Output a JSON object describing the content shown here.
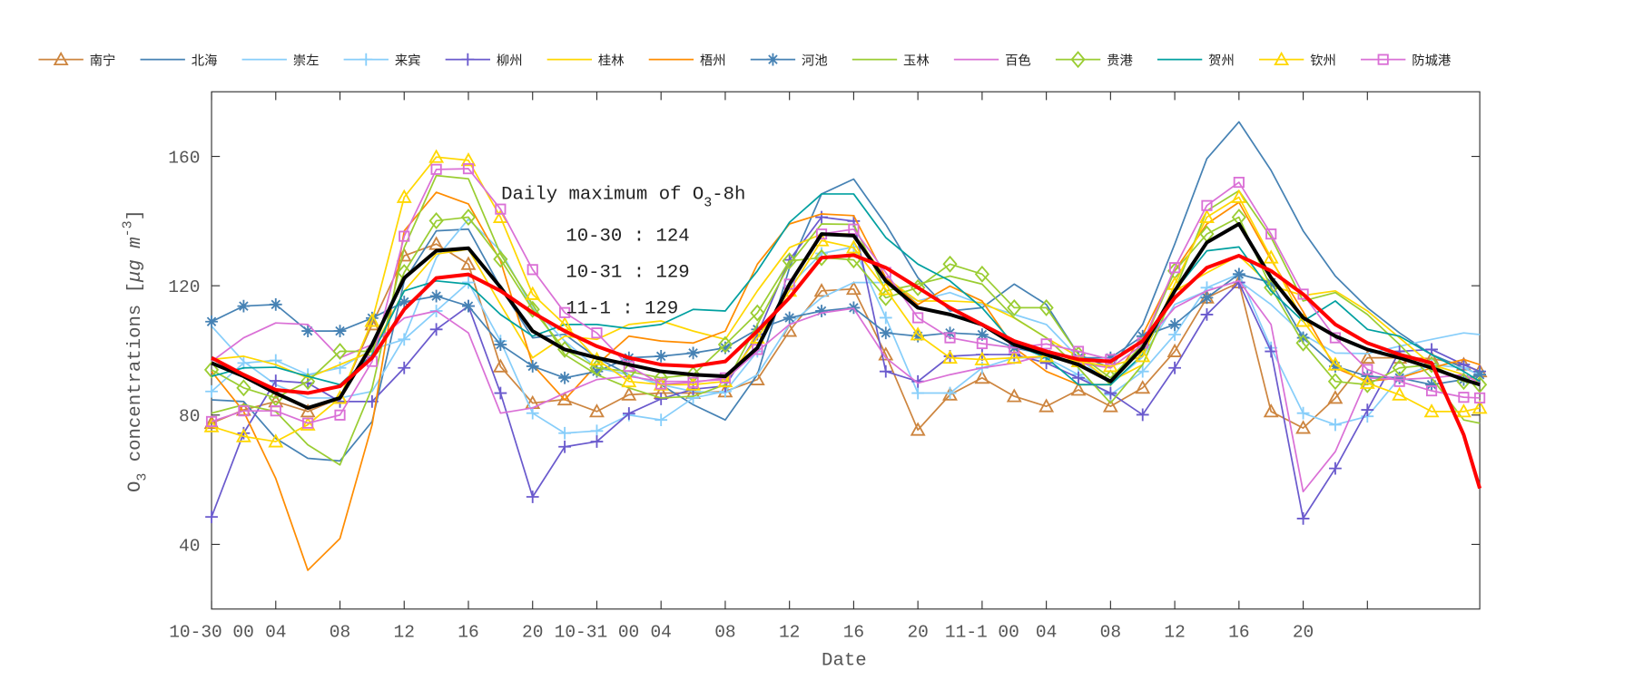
{
  "chart_data": {
    "type": "line",
    "xlabel": "Date",
    "ylabel": {
      "prefix": "O",
      "sub": "3",
      "mid": " concentrations [",
      "unit": "μg m",
      "sup": "-3",
      "suffix": "]"
    },
    "xlim": [
      "10-30 00",
      "11-2 07"
    ],
    "ylim": [
      20,
      180
    ],
    "yticks": [
      40,
      80,
      120,
      160
    ],
    "xticks": [
      {
        "at": "10-30 00",
        "label": "10-30 00"
      },
      {
        "at": "10-30 04",
        "label": "04"
      },
      {
        "at": "10-30 08",
        "label": "08"
      },
      {
        "at": "10-30 12",
        "label": "12"
      },
      {
        "at": "10-30 16",
        "label": "16"
      },
      {
        "at": "10-30 20",
        "label": "20"
      },
      {
        "at": "10-31 00",
        "label": "10-31 00"
      },
      {
        "at": "10-31 04",
        "label": "04"
      },
      {
        "at": "10-31 08",
        "label": "08"
      },
      {
        "at": "10-31 12",
        "label": "12"
      },
      {
        "at": "10-31 16",
        "label": "16"
      },
      {
        "at": "10-31 20",
        "label": "20"
      },
      {
        "at": "11-1 00",
        "label": "11-1 00"
      },
      {
        "at": "11-1 04",
        "label": "04"
      },
      {
        "at": "11-1 08",
        "label": "08"
      },
      {
        "at": "11-1 12",
        "label": "12"
      },
      {
        "at": "11-1 16",
        "label": "16"
      },
      {
        "at": "11-1 20",
        "label": "20"
      },
      {
        "at": "11-2 00",
        "label": ""
      }
    ],
    "grid": false,
    "legend_placement": "top (outside, single row)",
    "annotation": {
      "title_prefix": "Daily maximum of O",
      "title_sub": "3",
      "title_suffix": "-8h",
      "lines": [
        "10-30 : 124",
        "10-31 : 129",
        "11-1 : 129"
      ]
    },
    "x": [
      "10-30 00",
      "10-30 02",
      "10-30 04",
      "10-30 06",
      "10-30 08",
      "10-30 10",
      "10-30 12",
      "10-30 14",
      "10-30 16",
      "10-30 18",
      "10-30 20",
      "10-30 22",
      "10-31 00",
      "10-31 02",
      "10-31 04",
      "10-31 06",
      "10-31 08",
      "10-31 10",
      "10-31 12",
      "10-31 14",
      "10-31 16",
      "10-31 18",
      "10-31 20",
      "10-31 22",
      "11-1 00",
      "11-1 02",
      "11-1 04",
      "11-1 06",
      "11-1 08",
      "11-1 10",
      "11-1 12",
      "11-1 14",
      "11-1 16",
      "11-1 18",
      "11-1 20",
      "11-1 22",
      "11-2 00",
      "11-2 02",
      "11-2 04",
      "11-2 06",
      "11-2 07"
    ],
    "series": [
      {
        "name": "南宁",
        "color": "#CD853F",
        "marker": "triangle",
        "values": [
          77.5,
          81.6,
          84.2,
          81.1,
          85.3,
          108,
          129.3,
          132.9,
          126.7,
          95,
          83.7,
          84.8,
          81.1,
          86.3,
          86.8,
          86.8,
          87.3,
          91,
          106,
          118.4,
          119,
          98.7,
          75.4,
          86.3,
          91.5,
          85.8,
          82.7,
          87.8,
          82.7,
          88.4,
          99.7,
          116.3,
          121,
          81.1,
          76,
          85.3,
          97.7,
          97.7,
          97.5,
          95.6,
          93.5
        ]
      },
      {
        "name": "北海",
        "color": "#4682B4",
        "marker": "none",
        "values": [
          84.7,
          84.2,
          72.8,
          66.6,
          65.8,
          78,
          121.5,
          137,
          137.5,
          119.5,
          103.9,
          105,
          97.7,
          92.5,
          89.4,
          83.2,
          78.5,
          92.5,
          125.6,
          148.4,
          153,
          139,
          122.5,
          112.2,
          113.2,
          120.5,
          114.2,
          98.7,
          94.6,
          108,
          132.9,
          159.3,
          170.7,
          155.7,
          137,
          123,
          113.2,
          105.4,
          98.7,
          94.6,
          92.5
        ]
      },
      {
        "name": "崇左",
        "color": "#87CEFA",
        "marker": "none",
        "values": [
          107.5,
          96.6,
          89.4,
          85.3,
          85.3,
          87.3,
          103.9,
          128.7,
          140.6,
          130.8,
          113.2,
          102.9,
          94.6,
          92.5,
          89.4,
          87.3,
          86.8,
          92.5,
          108,
          116.3,
          121,
          121,
          115.3,
          117.9,
          114.2,
          111.1,
          108,
          97.7,
          89.4,
          98,
          114.2,
          118.4,
          121.5,
          114.2,
          104.9,
          99.2,
          99,
          101.3,
          103.4,
          105.4,
          104.9
        ]
      },
      {
        "name": "来宾",
        "color": "#87CEFA",
        "marker": "plus",
        "values": [
          87.3,
          96.1,
          96.9,
          92.5,
          94.6,
          100.3,
          103.4,
          112.2,
          121,
          102.9,
          80.6,
          74.4,
          75.1,
          80,
          78.5,
          85.3,
          87.3,
          99.7,
          120,
          130,
          132,
          110.1,
          86.8,
          86.8,
          94.6,
          97.7,
          97.7,
          92.5,
          86.3,
          93.5,
          104.9,
          119.4,
          123.6,
          100.8,
          80.6,
          77,
          79.6,
          91.5,
          95.6,
          94.6,
          92.5
        ]
      },
      {
        "name": "柳州",
        "color": "#6A5ACD",
        "marker": "plus",
        "values": [
          48.5,
          74.4,
          90.6,
          89.9,
          84.2,
          84.2,
          94.6,
          106.5,
          113.7,
          86.8,
          54.7,
          70.2,
          71.8,
          80.5,
          85,
          88,
          89,
          105,
          128,
          141.2,
          140,
          93.5,
          90.4,
          98.2,
          98.7,
          98.7,
          96.1,
          91.5,
          86.8,
          80.1,
          94.6,
          111.1,
          121,
          99.7,
          48,
          63.5,
          81.6,
          99.7,
          100.3,
          95.6,
          93.5
        ]
      },
      {
        "name": "桂林",
        "color": "#FFD700",
        "marker": "none",
        "values": [
          97.2,
          98.2,
          95.6,
          91.5,
          95.6,
          99.7,
          118.4,
          129.8,
          131.3,
          114.2,
          97.7,
          104.4,
          103.4,
          108,
          109.1,
          106,
          103.4,
          118.4,
          131.8,
          136,
          136,
          122.5,
          115.3,
          115.3,
          114.8,
          110,
          103.9,
          98,
          90.4,
          95.6,
          118.4,
          124,
          129.3,
          120,
          117,
          118.4,
          112.2,
          103.9,
          95.6,
          92.5,
          90.4
        ]
      },
      {
        "name": "梧州",
        "color": "#FF8C00",
        "marker": "none",
        "values": [
          93.5,
          81.1,
          60.4,
          32,
          41.8,
          77,
          137,
          148.9,
          145.3,
          127.7,
          95.6,
          84.7,
          95.6,
          104.4,
          102.9,
          102.3,
          106,
          126.7,
          139.1,
          142.2,
          141.7,
          122.5,
          114.2,
          119.9,
          115.3,
          100.8,
          93.5,
          89.4,
          89.4,
          104.9,
          124.6,
          139.1,
          145.8,
          128,
          112,
          94.6,
          90.4,
          91.5,
          94.6,
          97.2,
          95.6
        ]
      },
      {
        "name": "河池",
        "color": "#4682B4",
        "marker": "star",
        "values": [
          108.9,
          113.7,
          114.2,
          106,
          106,
          110,
          115,
          116.8,
          113.7,
          101.8,
          95.1,
          91.5,
          93.5,
          97.7,
          98.2,
          99.2,
          100.8,
          106.5,
          110.1,
          112.2,
          113.2,
          105.4,
          104.4,
          105.4,
          104.9,
          100.8,
          98.7,
          97.7,
          97.7,
          104.4,
          108,
          116.3,
          123.6,
          121,
          103.9,
          95.1,
          92,
          91.5,
          89.4,
          91,
          92.5
        ]
      },
      {
        "name": "玉林",
        "color": "#9ACD32",
        "marker": "none",
        "values": [
          80.6,
          83.2,
          81.1,
          70.8,
          64.6,
          88.4,
          131.8,
          154.1,
          153.1,
          129.8,
          114.2,
          98.7,
          92.5,
          88.4,
          85.3,
          85.8,
          89.4,
          108,
          126.7,
          139.1,
          139,
          118.4,
          120.5,
          123,
          120.5,
          110.1,
          103.9,
          94.6,
          83.7,
          95.6,
          118.4,
          143.2,
          149.4,
          135,
          115.3,
          117.9,
          111.1,
          101.8,
          91.5,
          78.5,
          77.5
        ]
      },
      {
        "name": "百色",
        "color": "#DA70D6",
        "marker": "none",
        "values": [
          96.6,
          103.9,
          108.5,
          108,
          97.7,
          101.8,
          110,
          112.2,
          105.4,
          80.6,
          82.2,
          86.8,
          91,
          92,
          90.4,
          90.4,
          91,
          99.7,
          108,
          111.6,
          113,
          97.7,
          89.9,
          92.5,
          94.6,
          96.1,
          98.7,
          96.1,
          94.6,
          101.8,
          113.2,
          118.4,
          121.5,
          108,
          56.3,
          68.7,
          91.5,
          91,
          91.5,
          92.5,
          89.9
        ]
      },
      {
        "name": "贵港",
        "color": "#9ACD32",
        "marker": "diamond",
        "values": [
          94,
          88.4,
          85.3,
          90.4,
          99.7,
          99.7,
          124.1,
          140.1,
          141.2,
          128.2,
          112.7,
          100.3,
          94.6,
          93.5,
          91.5,
          92.5,
          101.8,
          111.6,
          127.7,
          128.7,
          128,
          116.3,
          119.4,
          126.7,
          123.6,
          113.2,
          113.2,
          98.7,
          91.5,
          101.8,
          124.6,
          136,
          141.2,
          119.4,
          102.3,
          90.4,
          89.4,
          94.6,
          95.6,
          90.4,
          89.4
        ]
      },
      {
        "name": "贺州",
        "color": "#00A0A0",
        "marker": "none",
        "values": [
          92,
          94.6,
          94.8,
          92,
          89.4,
          98.7,
          118.4,
          121.5,
          120.5,
          111.1,
          104.4,
          108,
          108,
          106.8,
          108,
          112.7,
          112.2,
          124.6,
          139.6,
          148.4,
          148.4,
          134.9,
          126.7,
          121.5,
          113.2,
          101.8,
          97.7,
          89.4,
          89.4,
          98.7,
          118.4,
          130.8,
          132,
          118.4,
          109,
          115.3,
          106.5,
          104.4,
          98.7,
          93.5,
          90.4
        ]
      },
      {
        "name": "钦州",
        "color": "#FFD700",
        "marker": "triangle",
        "values": [
          76.5,
          73.4,
          71.8,
          77,
          85.3,
          109.1,
          147.4,
          159.8,
          158.8,
          141.2,
          117.4,
          108,
          97.2,
          90.4,
          89.4,
          89.4,
          90.4,
          103.9,
          118.4,
          134,
          131.8,
          118.9,
          104.9,
          97.7,
          97.2,
          97.7,
          98.2,
          96.6,
          95.1,
          98.2,
          120.5,
          141.2,
          147.4,
          128.7,
          109.1,
          95.6,
          89.9,
          86.3,
          81.1,
          81.1,
          82.2
        ]
      },
      {
        "name": "防城港",
        "color": "#DA70D6",
        "marker": "square",
        "values": [
          78,
          81.3,
          81.3,
          77.5,
          80,
          96.6,
          135.3,
          156,
          156.2,
          143.7,
          125,
          111.7,
          105.4,
          95.1,
          89.6,
          90.1,
          91.5,
          100.3,
          120.5,
          136,
          137.5,
          124.1,
          110.1,
          103.9,
          102.1,
          100.8,
          102,
          99.7,
          97.2,
          102.3,
          125.6,
          144.8,
          152,
          136,
          117.4,
          103.9,
          94.1,
          90.4,
          87.5,
          85.5,
          85.3
        ]
      },
      {
        "color": "#000000",
        "marker": "none",
        "thick": true,
        "values": [
          96.1,
          92,
          86.8,
          82.2,
          85.3,
          101.8,
          122.4,
          130.8,
          131.6,
          119.5,
          106,
          100.3,
          97.7,
          95.6,
          93.5,
          92.5,
          92,
          100.8,
          120.5,
          136,
          135.5,
          121.5,
          113.2,
          111.1,
          108,
          101.8,
          98.7,
          95.6,
          90.4,
          100.8,
          118.4,
          133.4,
          139.1,
          122.5,
          110.1,
          104.4,
          100.3,
          97.7,
          94.6,
          91,
          89.4
        ]
      },
      {
        "color": "#FF0000",
        "marker": "none",
        "thick": true,
        "values": [
          97.7,
          92.5,
          87.8,
          86.8,
          88.9,
          97.7,
          112.7,
          122.4,
          123.5,
          118.4,
          111.7,
          106,
          101.3,
          97.7,
          95.6,
          95.1,
          96.6,
          106,
          116.3,
          128.7,
          129.5,
          125.6,
          119.4,
          113.2,
          108,
          102.9,
          99.7,
          97.2,
          96.6,
          102.9,
          116.3,
          125.6,
          129.3,
          124.6,
          117.4,
          108,
          102.3,
          98.7,
          96.1,
          73.9,
          57.3
        ]
      }
    ]
  }
}
